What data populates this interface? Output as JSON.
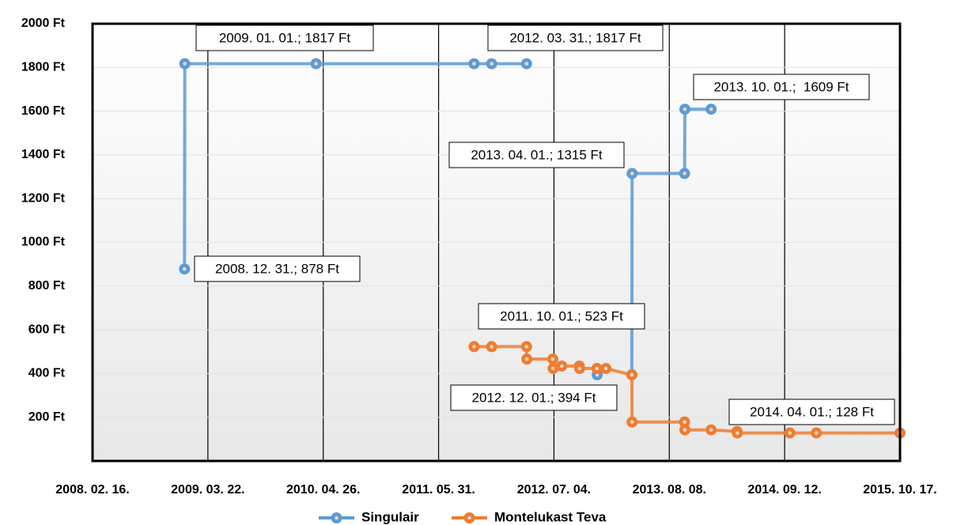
{
  "chart_data": {
    "type": "line",
    "x": [
      "2008-12-31",
      "2009-01-01",
      "2010-04-01",
      "2011-10-01",
      "2011-12-01",
      "2012-03-31",
      "2012-04-01",
      "2012-06-30",
      "2012-07-01",
      "2012-07-31",
      "2012-09-30",
      "2012-10-01",
      "2012-11-30",
      "2012-12-01",
      "2012-12-31",
      "2013-03-31",
      "2013-04-01",
      "2013-09-30",
      "2013-10-01",
      "2013-12-31",
      "2014-03-31",
      "2014-04-01",
      "2014-09-30",
      "2014-12-31",
      "2015-10-17"
    ],
    "series": [
      {
        "name": "Singulair",
        "color": "#5b9bd5",
        "values": [
          878,
          1817,
          1817,
          1817,
          1817,
          1817,
          null,
          null,
          null,
          null,
          null,
          null,
          null,
          394,
          null,
          394,
          1315,
          1315,
          1609,
          1609,
          null,
          null,
          null,
          null,
          null
        ]
      },
      {
        "name": "Montelukast Teva",
        "color": "#ed7d31",
        "values": [
          null,
          null,
          null,
          523,
          523,
          523,
          466,
          466,
          423,
          434,
          434,
          423,
          423,
          null,
          423,
          394,
          178,
          178,
          142,
          142,
          135,
          128,
          128,
          128,
          128
        ]
      }
    ],
    "xlim": [
      "2008-02-16",
      "2015-10-17"
    ],
    "xticks": [
      {
        "value": "2008-02-16",
        "label": "2008. 02. 16."
      },
      {
        "value": "2009-03-22",
        "label": "2009. 03. 22."
      },
      {
        "value": "2010-04-26",
        "label": "2010. 04. 26."
      },
      {
        "value": "2011-05-31",
        "label": "2011. 05. 31."
      },
      {
        "value": "2012-07-04",
        "label": "2012. 07. 04."
      },
      {
        "value": "2013-08-08",
        "label": "2013. 08. 08."
      },
      {
        "value": "2014-09-12",
        "label": "2014. 09. 12."
      },
      {
        "value": "2015-10-17",
        "label": "2015. 10. 17."
      }
    ],
    "ylim": [
      0,
      2000
    ],
    "yticks": [
      {
        "value": 200,
        "label": "200 Ft"
      },
      {
        "value": 400,
        "label": "400 Ft"
      },
      {
        "value": 600,
        "label": "600 Ft"
      },
      {
        "value": 800,
        "label": "800 Ft"
      },
      {
        "value": 1000,
        "label": "1000 Ft"
      },
      {
        "value": 1200,
        "label": "1200 Ft"
      },
      {
        "value": 1400,
        "label": "1400 Ft"
      },
      {
        "value": 1600,
        "label": "1600 Ft"
      },
      {
        "value": 1800,
        "label": "1800 Ft"
      },
      {
        "value": 2000,
        "label": "2000 Ft"
      }
    ],
    "grid": true,
    "legend": "bottom",
    "annotations": [
      "2009. 01. 01.; 1817 Ft",
      "2012. 03. 31.; 1817 Ft",
      "2013. 10. 01.;  1609 Ft",
      "2013. 04. 01.; 1315 Ft",
      "2008. 12. 31.; 878 Ft",
      "2011. 10. 01.; 523 Ft",
      "2012. 12. 01.; 394 Ft",
      "2014. 04. 01.; 128 Ft"
    ]
  }
}
